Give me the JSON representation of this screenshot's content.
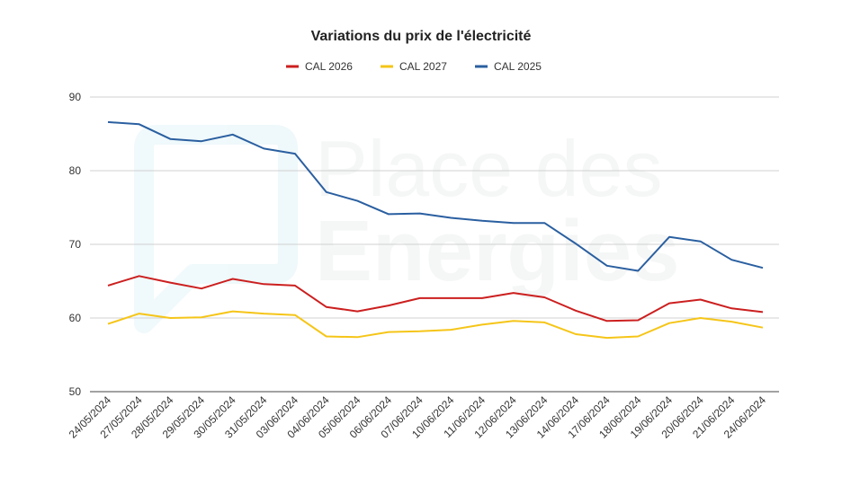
{
  "chart_data": {
    "type": "line",
    "title": "Variations du prix de l'électricité",
    "xlabel": "",
    "ylabel": "",
    "ylim": [
      50,
      90
    ],
    "yticks": [
      50,
      60,
      70,
      80,
      90
    ],
    "grid": true,
    "legend_position": "top",
    "watermark": [
      "Place des",
      "Energies"
    ],
    "categories": [
      "24/05/2024",
      "27/05/2024",
      "28/05/2024",
      "29/05/2024",
      "30/05/2024",
      "31/05/2024",
      "03/06/2024",
      "04/06/2024",
      "05/06/2024",
      "06/06/2024",
      "07/06/2024",
      "10/06/2024",
      "11/06/2024",
      "12/06/2024",
      "13/06/2024",
      "14/06/2024",
      "17/06/2024",
      "18/06/2024",
      "19/06/2024",
      "20/06/2024",
      "21/06/2024",
      "24/06/2024"
    ],
    "series": [
      {
        "name": "CAL 2026",
        "color": "#cc1f1f",
        "values": [
          64.4,
          65.7,
          64.8,
          64.0,
          65.3,
          64.6,
          64.4,
          61.5,
          60.9,
          61.7,
          62.7,
          62.7,
          62.7,
          63.4,
          62.8,
          61.0,
          59.6,
          59.7,
          62.0,
          62.5,
          61.3,
          60.8
        ]
      },
      {
        "name": "CAL 2027",
        "color": "#f5c518",
        "values": [
          59.2,
          60.6,
          60.0,
          60.1,
          60.9,
          60.6,
          60.4,
          57.5,
          57.4,
          58.1,
          58.2,
          58.4,
          59.1,
          59.6,
          59.4,
          57.8,
          57.3,
          57.5,
          59.3,
          60.0,
          59.5,
          58.7
        ]
      },
      {
        "name": "CAL 2025",
        "color": "#2a5fa0",
        "values": [
          86.6,
          86.3,
          84.3,
          84.0,
          84.9,
          83.0,
          82.3,
          77.1,
          75.9,
          74.1,
          74.2,
          73.6,
          73.2,
          72.9,
          72.9,
          70.1,
          67.1,
          66.4,
          71.0,
          70.4,
          67.9,
          66.8
        ]
      }
    ]
  }
}
